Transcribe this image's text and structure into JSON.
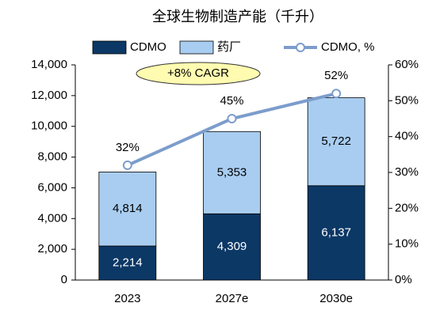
{
  "chart_data": {
    "type": "bar",
    "title": "全球生物制造产能（千升）",
    "categories": [
      "2023",
      "2027e",
      "2030e"
    ],
    "series": [
      {
        "name": "CDMO",
        "color": "#0c3866",
        "values": [
          2214,
          4309,
          6137
        ],
        "value_labels": [
          "2,214",
          "4,309",
          "6,137"
        ]
      },
      {
        "name": "药厂",
        "color": "#a8cdf0",
        "values": [
          4814,
          5353,
          5722
        ],
        "value_labels": [
          "4,814",
          "5,353",
          "5,722"
        ]
      },
      {
        "name": "CDMO, %",
        "type": "line",
        "axis": "y2",
        "color": "#7c9dcc",
        "values": [
          32,
          45,
          52
        ],
        "value_labels": [
          "32%",
          "45%",
          "52%"
        ]
      }
    ],
    "stacked": true,
    "ylim": [
      0,
      14000
    ],
    "yticks": [
      0,
      {
        "value": 2000,
        "label": "2,000"
      },
      {
        "value": 4000,
        "label": "4,000"
      },
      {
        "value": 6000,
        "label": "6,000"
      },
      {
        "value": 8000,
        "label": "8,000"
      },
      {
        "value": 10000,
        "label": "10,000"
      },
      {
        "value": 12000,
        "label": "12,000"
      },
      {
        "value": 14000,
        "label": "14,000"
      }
    ],
    "y2lim": [
      0,
      60
    ],
    "y2ticks": [
      {
        "value": 0,
        "label": "0%"
      },
      {
        "value": 10,
        "label": "10%"
      },
      {
        "value": 20,
        "label": "20%"
      },
      {
        "value": 30,
        "label": "30%"
      },
      {
        "value": 40,
        "label": "40%"
      },
      {
        "value": 50,
        "label": "50%"
      },
      {
        "value": 60,
        "label": "60%"
      }
    ],
    "annotation": "+8% CAGR",
    "legend": "top"
  }
}
